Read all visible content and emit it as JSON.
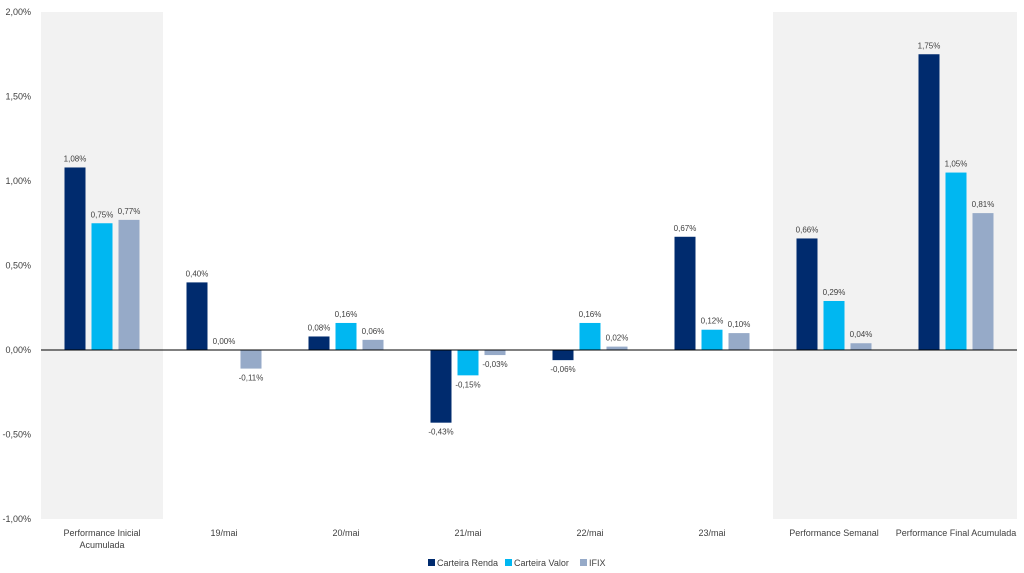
{
  "chart_data": {
    "type": "bar",
    "title": "",
    "xlabel": "",
    "ylabel": "",
    "ylim": [
      -1.0,
      2.0
    ],
    "yticks": [
      -1.0,
      -0.5,
      0.0,
      0.5,
      1.0,
      1.5,
      2.0
    ],
    "ytick_labels": [
      "-1,00%",
      "-0,50%",
      "0,00%",
      "0,50%",
      "1,00%",
      "1,50%",
      "2,00%"
    ],
    "grid": false,
    "legend_position": "bottom-center",
    "categories": [
      [
        "Performance Inicial",
        "Acumulada"
      ],
      [
        "19/mai"
      ],
      [
        "20/mai"
      ],
      [
        "21/mai"
      ],
      [
        "22/mai"
      ],
      [
        "23/mai"
      ],
      [
        "Performance Semanal"
      ],
      [
        "Performance Final Acumulada"
      ]
    ],
    "highlighted_categories": [
      0,
      6,
      7
    ],
    "highlight_color": "#f2f2f2",
    "series": [
      {
        "name": "Carteira Renda",
        "color": "#002b6e",
        "values": [
          1.08,
          0.4,
          0.08,
          -0.43,
          -0.06,
          0.67,
          0.66,
          1.75
        ],
        "labels": [
          "1,08%",
          "0,40%",
          "0,08%",
          "-0,43%",
          "-0,06%",
          "0,67%",
          "0,66%",
          "1,75%"
        ]
      },
      {
        "name": "Carteira Valor",
        "color": "#00b7f1",
        "values": [
          0.75,
          0.0,
          0.16,
          -0.15,
          0.16,
          0.12,
          0.29,
          1.05
        ],
        "labels": [
          "0,75%",
          "0,00%",
          "0,16%",
          "-0,15%",
          "0,16%",
          "0,12%",
          "0,29%",
          "1,05%"
        ]
      },
      {
        "name": "IFIX",
        "color": "#96aac8",
        "values": [
          0.77,
          -0.11,
          0.06,
          -0.03,
          0.02,
          0.1,
          0.04,
          0.81
        ],
        "labels": [
          "0,77%",
          "-0,11%",
          "0,06%",
          "-0,03%",
          "0,02%",
          "0,10%",
          "0,04%",
          "0,81%"
        ]
      }
    ]
  }
}
